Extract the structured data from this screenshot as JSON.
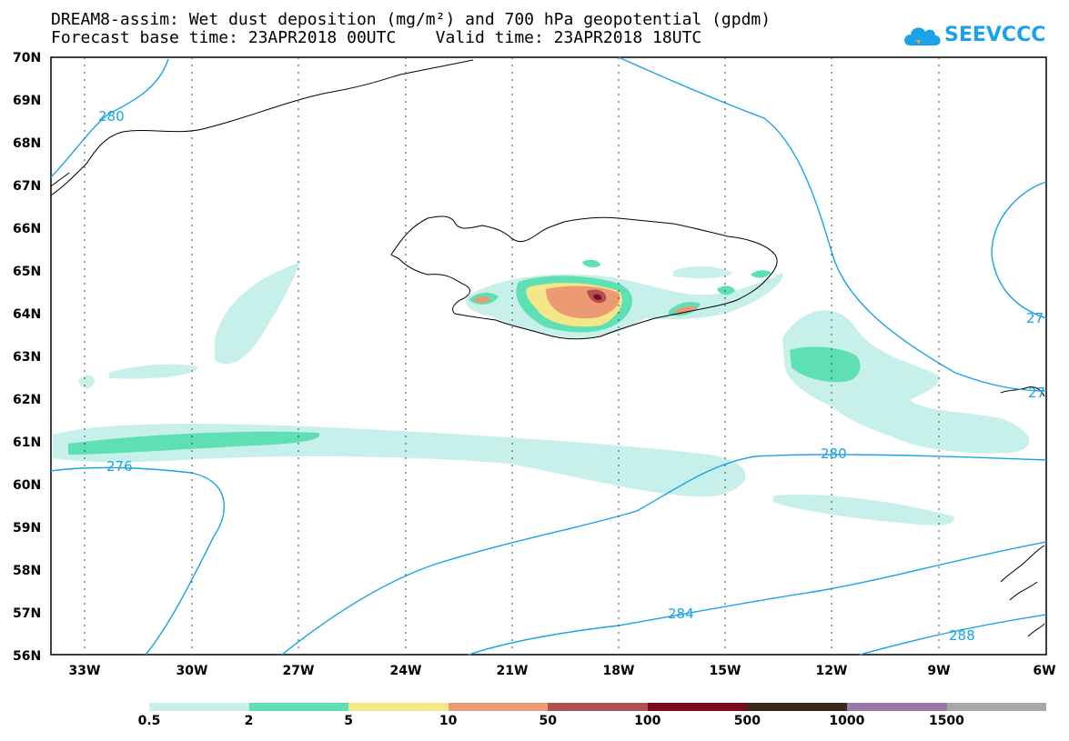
{
  "title": {
    "line1": "DREAM8-assim: Wet dust deposition (mg/m²) and 700 hPa geopotential (gpdm)",
    "line2": "Forecast base time: 23APR2018 00UTC    Valid time: 23APR2018 18UTC"
  },
  "logo": {
    "text": "SEEVCCC",
    "icon": "cloud-icon"
  },
  "axes": {
    "lat_labels": [
      "70N",
      "69N",
      "68N",
      "67N",
      "66N",
      "65N",
      "64N",
      "63N",
      "62N",
      "61N",
      "60N",
      "59N",
      "58N",
      "57N",
      "56N"
    ],
    "lon_labels": [
      "33W",
      "30W",
      "27W",
      "24W",
      "21W",
      "18W",
      "15W",
      "12W",
      "9W",
      "6W"
    ]
  },
  "contours": {
    "color": "#1aa3e8",
    "labels": [
      "280",
      "276",
      "280",
      "284",
      "288",
      "27",
      "27"
    ]
  },
  "legend": {
    "colors": [
      "#c8f0ea",
      "#5ee0b4",
      "#f5e68a",
      "#ec9a74",
      "#b05050",
      "#7a0a1e",
      "#3a2818",
      "#9878a8",
      "#a8a8a8"
    ],
    "labels": [
      "0.5",
      "2",
      "5",
      "10",
      "50",
      "100",
      "500",
      "1000",
      "1500"
    ]
  }
}
